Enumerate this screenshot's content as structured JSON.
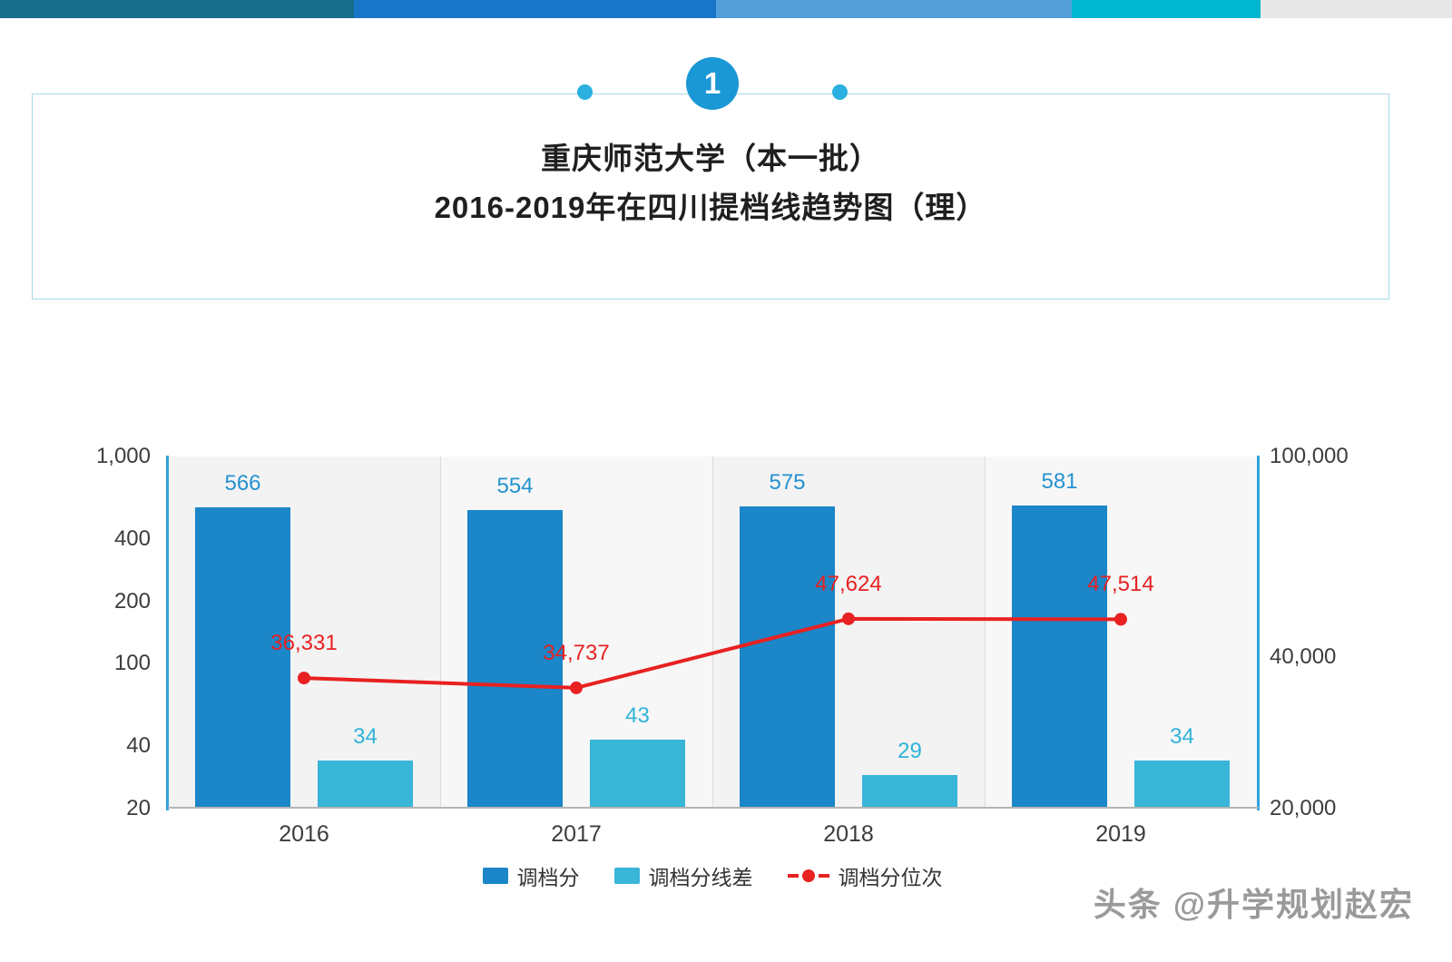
{
  "topbar": {
    "segments": [
      {
        "color": "#166d8c",
        "width": "24.4%"
      },
      {
        "color": "#1976c8",
        "width": "24.9%"
      },
      {
        "color": "#559fd8",
        "width": "24.5%"
      },
      {
        "color": "#00b6d0",
        "width": "13.0%"
      },
      {
        "color": "#e8e8e8",
        "width": "13.2%"
      }
    ]
  },
  "badge": {
    "number": "1"
  },
  "header": {
    "title_line1": "重庆师范大学（本一批）",
    "title_line2": "2016-2019年在四川提档线趋势图（理）"
  },
  "chart_data": {
    "type": "bar+line",
    "categories": [
      "2016",
      "2017",
      "2018",
      "2019"
    ],
    "series": [
      {
        "name": "调档分",
        "type": "bar",
        "axis": "left",
        "color": "#1b86c8",
        "label_color": "#2492d0",
        "values": [
          566,
          554,
          575,
          581
        ],
        "labels": [
          "566",
          "554",
          "575",
          "581"
        ]
      },
      {
        "name": "调档分线差",
        "type": "bar",
        "axis": "left",
        "color": "#39b5d8",
        "label_color": "#2fb3d8",
        "values": [
          34,
          43,
          29,
          34
        ],
        "labels": [
          "34",
          "43",
          "29",
          "34"
        ]
      },
      {
        "name": "调档分位次",
        "type": "line",
        "axis": "right",
        "color": "#e82121",
        "label_color": "#e82121",
        "values": [
          36331,
          34737,
          47624,
          47514
        ],
        "labels": [
          "36,331",
          "34,737",
          "47,624",
          "47,514"
        ]
      }
    ],
    "left_axis": {
      "scale": "log",
      "min": 20,
      "max": 1000,
      "tick_values": [
        1000,
        400,
        200,
        100,
        40,
        20
      ],
      "ticks": [
        "1,000",
        "400",
        "200",
        "100",
        "40",
        "20"
      ]
    },
    "right_axis": {
      "scale": "log",
      "min": 20000,
      "max": 100000,
      "tick_values": [
        100000,
        40000,
        20000
      ],
      "ticks": [
        "100,000",
        "40,000",
        "20,000"
      ]
    },
    "legend": [
      "调档分",
      "调档分线差",
      "调档分位次"
    ],
    "legend_position": "bottom",
    "grid": true
  },
  "watermark": {
    "brand": "头条",
    "handle": "@升学规划赵宏"
  }
}
